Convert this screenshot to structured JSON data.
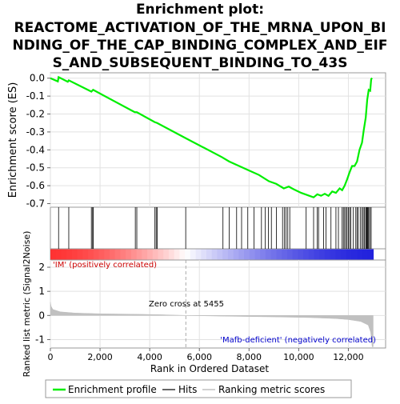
{
  "title_lines": [
    "Enrichment plot:",
    "REACTOME_ACTIVATION_OF_THE_MRNA_UPON_BI",
    "NDING_OF_THE_CAP_BINDING_COMPLEX_AND_EIF",
    "S_AND_SUBSEQUENT_BINDING_TO_43S"
  ],
  "colors": {
    "es_line": "#00ee00",
    "hit": "#000000",
    "metric_fill": "#c0c0c0",
    "positive_label": "#cc0000",
    "negative_label": "#0000cc",
    "pos_band": "#ff3333",
    "neg_band": "#2222dd",
    "grid": "#e2e2e2"
  },
  "chart_data": {
    "type": "line",
    "total_genes": 13000,
    "es_panel": {
      "ylabel": "Enrichment score (ES)",
      "yticks": [
        "0.0",
        "-0.1",
        "-0.2",
        "-0.3",
        "-0.4",
        "-0.5",
        "-0.6",
        "-0.7"
      ],
      "ylim": [
        -0.72,
        0.03
      ],
      "points": [
        [
          0,
          0.0
        ],
        [
          300,
          -0.018
        ],
        [
          330,
          0.006
        ],
        [
          700,
          -0.02
        ],
        [
          740,
          -0.012
        ],
        [
          1650,
          -0.075
        ],
        [
          1720,
          -0.065
        ],
        [
          3400,
          -0.19
        ],
        [
          3480,
          -0.19
        ],
        [
          4200,
          -0.245
        ],
        [
          4300,
          -0.25
        ],
        [
          5450,
          -0.335
        ],
        [
          6900,
          -0.44
        ],
        [
          7200,
          -0.465
        ],
        [
          7600,
          -0.49
        ],
        [
          8000,
          -0.515
        ],
        [
          8400,
          -0.54
        ],
        [
          8800,
          -0.575
        ],
        [
          9100,
          -0.59
        ],
        [
          9400,
          -0.615
        ],
        [
          9600,
          -0.605
        ],
        [
          9800,
          -0.62
        ],
        [
          10100,
          -0.64
        ],
        [
          10400,
          -0.655
        ],
        [
          10600,
          -0.665
        ],
        [
          10750,
          -0.648
        ],
        [
          10900,
          -0.656
        ],
        [
          11050,
          -0.645
        ],
        [
          11200,
          -0.657
        ],
        [
          11350,
          -0.632
        ],
        [
          11500,
          -0.64
        ],
        [
          11650,
          -0.615
        ],
        [
          11750,
          -0.625
        ],
        [
          11850,
          -0.6
        ],
        [
          11950,
          -0.565
        ],
        [
          12050,
          -0.525
        ],
        [
          12150,
          -0.49
        ],
        [
          12250,
          -0.49
        ],
        [
          12350,
          -0.465
        ],
        [
          12450,
          -0.4
        ],
        [
          12550,
          -0.36
        ],
        [
          12620,
          -0.29
        ],
        [
          12700,
          -0.22
        ],
        [
          12760,
          -0.12
        ],
        [
          12820,
          -0.065
        ],
        [
          12880,
          -0.07
        ],
        [
          12920,
          -0.005
        ],
        [
          12960,
          0.0
        ]
      ]
    },
    "hits": [
      330,
      740,
      1650,
      1700,
      1730,
      3420,
      3480,
      4210,
      4260,
      4300,
      5450,
      6950,
      7200,
      7500,
      7700,
      7950,
      8200,
      8500,
      8650,
      8780,
      8900,
      9100,
      9350,
      9420,
      9490,
      9560,
      9640,
      10300,
      10600,
      10750,
      10800,
      11000,
      11100,
      11300,
      11500,
      11600,
      11750,
      11800,
      11850,
      11900,
      11950,
      12000,
      12050,
      12100,
      12200,
      12300,
      12350,
      12400,
      12480,
      12550,
      12600,
      12650,
      12700,
      12730,
      12760,
      12790,
      12820,
      12870,
      12920
    ],
    "metric_panel": {
      "ylabel": "Ranked list metric (Signal2Noise)",
      "yticks": [
        "2",
        "1",
        "0",
        "-1"
      ],
      "ylim": [
        -1.35,
        2.3
      ],
      "points": [
        [
          0,
          0.55
        ],
        [
          30,
          0.38
        ],
        [
          100,
          0.25
        ],
        [
          400,
          0.15
        ],
        [
          1000,
          0.1
        ],
        [
          2000,
          0.07
        ],
        [
          3500,
          0.05
        ],
        [
          4500,
          0.03
        ],
        [
          5455,
          0.0
        ],
        [
          7000,
          -0.03
        ],
        [
          9000,
          -0.06
        ],
        [
          10500,
          -0.09
        ],
        [
          11500,
          -0.13
        ],
        [
          12000,
          -0.17
        ],
        [
          12500,
          -0.25
        ],
        [
          12800,
          -0.4
        ],
        [
          12900,
          -0.7
        ],
        [
          12960,
          -1.3
        ],
        [
          13000,
          -1.3
        ]
      ],
      "zero_cross_label": "Zero cross at 5455",
      "zero_cross": 5455,
      "positive_label": "'IM' (positively correlated)",
      "negative_label": "'Mafb-deficient' (negatively correlated)"
    },
    "xlabel": "Rank in Ordered Dataset",
    "xticks": [
      "0",
      "2,000",
      "4,000",
      "6,000",
      "8,000",
      "10,000",
      "12,000"
    ],
    "xlim": [
      0,
      13500
    ]
  },
  "legend": {
    "items": [
      {
        "label": "Enrichment profile",
        "key": "es_line"
      },
      {
        "label": "Hits",
        "key": "hit"
      },
      {
        "label": "Ranking metric scores",
        "key": "metric_fill"
      }
    ]
  }
}
